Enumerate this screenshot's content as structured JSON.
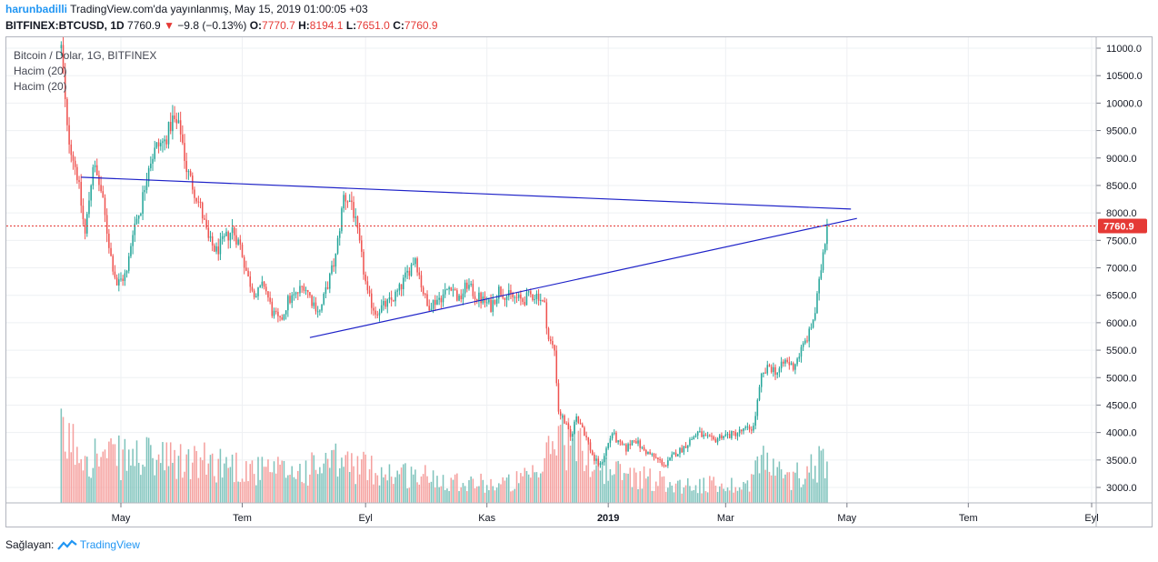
{
  "header": {
    "user": "harunbadilli",
    "published": "TradingView.com'da yayınlanmış, May 15, 2019 01:00:05 +03",
    "symbol": "BITFINEX:BTCUSD, 1D",
    "last": "7760.9",
    "arrow": "▼",
    "change": "−9.8 (−0.13%)",
    "o_label": "O:",
    "o_val": "7770.7",
    "h_label": "H:",
    "h_val": "8194.1",
    "l_label": "L:",
    "l_val": "7651.0",
    "c_label": "C:",
    "c_val": "7760.9"
  },
  "legend": {
    "main": "Bitcoin / Dolar, 1G, BITFINEX",
    "vol1": "Hacim (20)",
    "vol2": "Hacim (20)"
  },
  "footer": {
    "prefix": "Sağlayan:",
    "brand": "TradingView"
  },
  "colors": {
    "up": "#26a69a",
    "down": "#ef5350",
    "up_vol": "#7fc3bc",
    "down_vol": "#f5a09e",
    "trendline": "#1e22c8",
    "price_line": "#e53935",
    "grid": "#eef0f3"
  },
  "chart_data": {
    "type": "candlestick",
    "title": "Bitcoin / Dolar, 1G, BITFINEX",
    "ylim": [
      2700,
      11200
    ],
    "y_ticks": [
      "11000.0",
      "10500.0",
      "10000.0",
      "9500.0",
      "9000.0",
      "8500.0",
      "8000.0",
      "7500.0",
      "7000.0",
      "6500.0",
      "6000.0",
      "5500.0",
      "5000.0",
      "4500.0",
      "4000.0",
      "3500.0",
      "3000.0"
    ],
    "x_ticks": [
      "May",
      "Tem",
      "Eyl",
      "Kas",
      "2019",
      "Mar",
      "May",
      "Tem",
      "Eyl"
    ],
    "last_price_label": "7760.9",
    "last_price": 7760.9,
    "x_range_days": [
      0,
      450
    ],
    "x_tick_days": [
      30,
      91,
      153,
      214,
      275,
      334,
      395,
      456,
      518
    ],
    "candle_days": [
      0,
      385
    ],
    "price_path": [
      [
        0,
        11000
      ],
      [
        3,
        9500
      ],
      [
        8,
        8700
      ],
      [
        12,
        7600
      ],
      [
        16,
        8900
      ],
      [
        20,
        8400
      ],
      [
        25,
        7200
      ],
      [
        28,
        6700
      ],
      [
        33,
        6900
      ],
      [
        36,
        7700
      ],
      [
        40,
        8100
      ],
      [
        44,
        8900
      ],
      [
        48,
        9200
      ],
      [
        52,
        9300
      ],
      [
        56,
        9700
      ],
      [
        60,
        9500
      ],
      [
        63,
        8800
      ],
      [
        66,
        8500
      ],
      [
        70,
        8100
      ],
      [
        74,
        7500
      ],
      [
        78,
        7300
      ],
      [
        82,
        7500
      ],
      [
        86,
        7700
      ],
      [
        90,
        7400
      ],
      [
        94,
        6800
      ],
      [
        98,
        6500
      ],
      [
        102,
        6700
      ],
      [
        106,
        6200
      ],
      [
        110,
        6000
      ],
      [
        114,
        6400
      ],
      [
        118,
        6500
      ],
      [
        122,
        6700
      ],
      [
        126,
        6400
      ],
      [
        130,
        6200
      ],
      [
        134,
        6700
      ],
      [
        138,
        7200
      ],
      [
        142,
        8300
      ],
      [
        146,
        8200
      ],
      [
        150,
        7400
      ],
      [
        154,
        6500
      ],
      [
        158,
        6200
      ],
      [
        162,
        6300
      ],
      [
        166,
        6400
      ],
      [
        170,
        6600
      ],
      [
        174,
        6900
      ],
      [
        178,
        7200
      ],
      [
        181,
        6700
      ],
      [
        184,
        6300
      ],
      [
        188,
        6400
      ],
      [
        192,
        6500
      ],
      [
        196,
        6700
      ],
      [
        200,
        6400
      ],
      [
        204,
        6700
      ],
      [
        208,
        6500
      ],
      [
        212,
        6400
      ],
      [
        216,
        6300
      ],
      [
        220,
        6600
      ],
      [
        224,
        6500
      ],
      [
        228,
        6450
      ],
      [
        232,
        6400
      ],
      [
        236,
        6500
      ],
      [
        240,
        6500
      ],
      [
        243,
        6300
      ],
      [
        245,
        5700
      ],
      [
        248,
        5500
      ],
      [
        250,
        4400
      ],
      [
        253,
        4200
      ],
      [
        256,
        3900
      ],
      [
        259,
        4300
      ],
      [
        262,
        4100
      ],
      [
        265,
        3800
      ],
      [
        268,
        3500
      ],
      [
        271,
        3400
      ],
      [
        274,
        3700
      ],
      [
        277,
        4000
      ],
      [
        280,
        3800
      ],
      [
        284,
        3700
      ],
      [
        288,
        3900
      ],
      [
        292,
        3700
      ],
      [
        296,
        3600
      ],
      [
        300,
        3500
      ],
      [
        304,
        3400
      ],
      [
        308,
        3600
      ],
      [
        312,
        3700
      ],
      [
        316,
        3850
      ],
      [
        320,
        4000
      ],
      [
        324,
        3900
      ],
      [
        328,
        3850
      ],
      [
        332,
        3950
      ],
      [
        336,
        3950
      ],
      [
        340,
        4000
      ],
      [
        344,
        4050
      ],
      [
        348,
        4100
      ],
      [
        352,
        5000
      ],
      [
        356,
        5200
      ],
      [
        360,
        5100
      ],
      [
        364,
        5300
      ],
      [
        368,
        5200
      ],
      [
        372,
        5500
      ],
      [
        376,
        5800
      ],
      [
        379,
        6200
      ],
      [
        381,
        6700
      ],
      [
        383,
        7300
      ],
      [
        385,
        7760.9
      ]
    ],
    "volume_path": [
      [
        0,
        0.7
      ],
      [
        20,
        0.5
      ],
      [
        40,
        0.5
      ],
      [
        60,
        0.45
      ],
      [
        80,
        0.45
      ],
      [
        100,
        0.35
      ],
      [
        120,
        0.35
      ],
      [
        140,
        0.45
      ],
      [
        160,
        0.35
      ],
      [
        180,
        0.3
      ],
      [
        200,
        0.25
      ],
      [
        220,
        0.2
      ],
      [
        240,
        0.3
      ],
      [
        250,
        0.8
      ],
      [
        260,
        0.6
      ],
      [
        275,
        0.35
      ],
      [
        290,
        0.3
      ],
      [
        310,
        0.2
      ],
      [
        330,
        0.2
      ],
      [
        345,
        0.2
      ],
      [
        352,
        0.5
      ],
      [
        365,
        0.25
      ],
      [
        380,
        0.45
      ],
      [
        385,
        0.5
      ]
    ],
    "trendlines": [
      {
        "from": [
          10,
          8650
        ],
        "to": [
          397,
          8070
        ]
      },
      {
        "from": [
          125,
          5730
        ],
        "to": [
          400,
          7900
        ]
      }
    ]
  }
}
